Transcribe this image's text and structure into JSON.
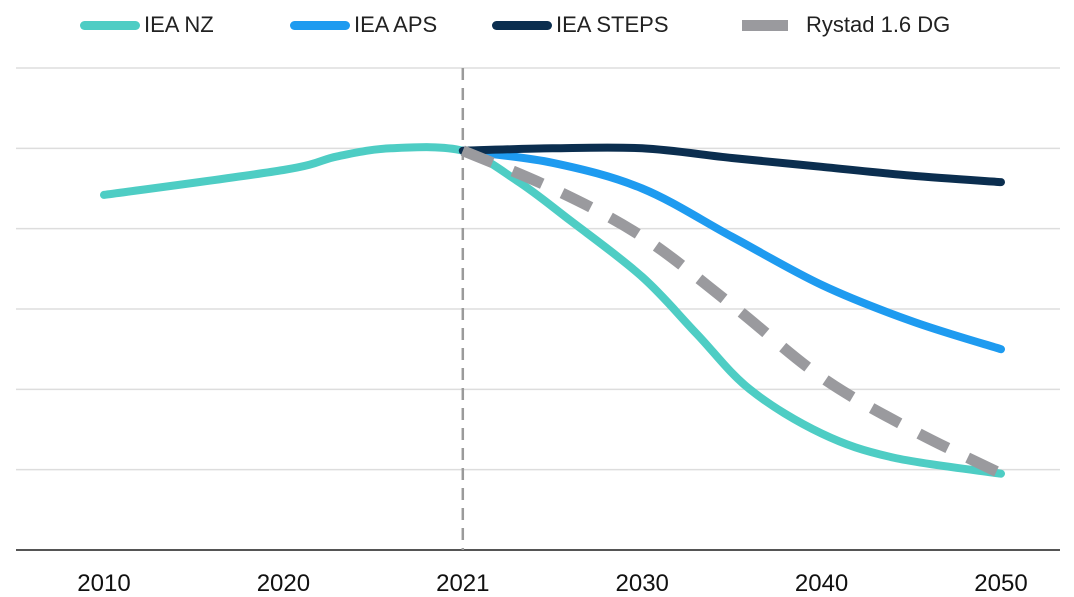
{
  "chart_data": {
    "type": "line",
    "title": "",
    "xlabel": "",
    "ylabel": "",
    "categories": [
      "2010",
      "2020",
      "2021",
      "2030",
      "2040",
      "2050"
    ],
    "ylim": [
      0,
      6
    ],
    "y_ticks": [
      0,
      1,
      2,
      3,
      4,
      5,
      6
    ],
    "y_tick_labels_shown": false,
    "grid": true,
    "legend_position": "top",
    "divider_at": "2021",
    "series": [
      {
        "name": "IEA NZ",
        "color": "#4ECDC4",
        "dashed": false,
        "points": [
          [
            0.0,
            4.42
          ],
          [
            1.0,
            4.73
          ],
          [
            1.3,
            4.9
          ],
          [
            1.6,
            5.0
          ],
          [
            2.0,
            4.97
          ],
          [
            2.3,
            4.6
          ],
          [
            2.6,
            4.1
          ],
          [
            3.0,
            3.4
          ],
          [
            3.3,
            2.7
          ],
          [
            3.6,
            2.0
          ],
          [
            4.0,
            1.45
          ],
          [
            4.4,
            1.15
          ],
          [
            5.0,
            0.95
          ]
        ]
      },
      {
        "name": "IEA APS",
        "color": "#1E9BF0",
        "dashed": false,
        "points": [
          [
            2.0,
            4.97
          ],
          [
            2.5,
            4.82
          ],
          [
            3.0,
            4.5
          ],
          [
            3.5,
            3.9
          ],
          [
            4.0,
            3.3
          ],
          [
            4.5,
            2.85
          ],
          [
            5.0,
            2.5
          ]
        ]
      },
      {
        "name": "IEA STEPS",
        "color": "#0B2E4F",
        "dashed": false,
        "points": [
          [
            2.0,
            4.97
          ],
          [
            2.5,
            5.0
          ],
          [
            3.0,
            5.0
          ],
          [
            3.5,
            4.88
          ],
          [
            4.0,
            4.77
          ],
          [
            4.5,
            4.66
          ],
          [
            5.0,
            4.58
          ]
        ]
      },
      {
        "name": "Rystad 1.6 DG",
        "color": "#9A9A9E",
        "dashed": true,
        "points": [
          [
            2.0,
            4.97
          ],
          [
            2.5,
            4.5
          ],
          [
            3.0,
            3.9
          ],
          [
            3.5,
            3.05
          ],
          [
            4.0,
            2.15
          ],
          [
            4.5,
            1.5
          ],
          [
            5.0,
            0.95
          ]
        ]
      }
    ]
  }
}
